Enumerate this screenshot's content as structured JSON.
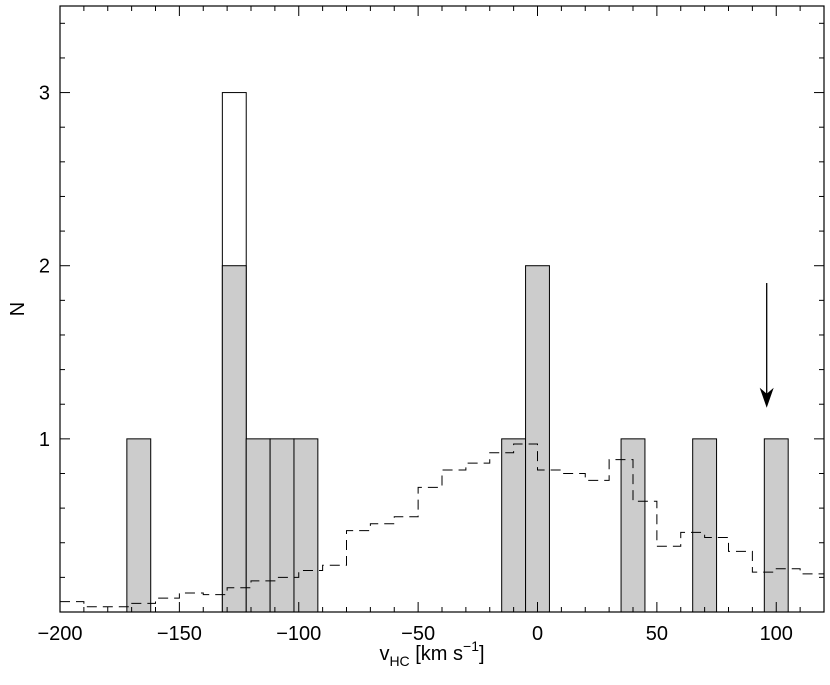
{
  "chart_data": {
    "type": "bar",
    "xlabel": "v",
    "xlabel_sub": "HC",
    "xlabel_units": " [km s",
    "xlabel_sup": "−1",
    "xlabel_close": "]",
    "ylabel": "N",
    "xlim": [
      -200,
      120
    ],
    "ylim": [
      0,
      3.5
    ],
    "x_major_ticks": [
      -200,
      -150,
      -100,
      -50,
      0,
      50,
      100
    ],
    "x_tick_labels": [
      "−200",
      "−150",
      "−100",
      "−50",
      "0",
      "50",
      "100"
    ],
    "x_minor_step": 10,
    "y_major_ticks": [
      1,
      2,
      3
    ],
    "y_tick_labels": [
      "1",
      "2",
      "3"
    ],
    "y_minor_step": 0.2,
    "bin_width": 10,
    "series": [
      {
        "style": "filled-gray",
        "bins": [
          {
            "x0": -172,
            "x1": -162,
            "count": 1
          },
          {
            "x0": -132,
            "x1": -122,
            "count": 2
          },
          {
            "x0": -122,
            "x1": -112,
            "count": 1
          },
          {
            "x0": -112,
            "x1": -102,
            "count": 1
          },
          {
            "x0": -102,
            "x1": -92,
            "count": 1
          },
          {
            "x0": -15,
            "x1": -5,
            "count": 1
          },
          {
            "x0": -5,
            "x1": 5,
            "count": 2
          },
          {
            "x0": 35,
            "x1": 45,
            "count": 1
          },
          {
            "x0": 65,
            "x1": 75,
            "count": 1
          },
          {
            "x0": 95,
            "x1": 105,
            "count": 1
          }
        ]
      },
      {
        "style": "open",
        "bins": [
          {
            "x0": -132,
            "x1": -122,
            "count": 3
          }
        ]
      },
      {
        "style": "dashed-step",
        "x": [
          -200,
          -190,
          -180,
          -170,
          -160,
          -150,
          -140,
          -130,
          -120,
          -110,
          -100,
          -90,
          -80,
          -70,
          -60,
          -50,
          -40,
          -30,
          -20,
          -10,
          0,
          10,
          20,
          30,
          40,
          50,
          60,
          70,
          80,
          90,
          100,
          110,
          120
        ],
        "y": [
          0.06,
          0.03,
          0.03,
          0.05,
          0.08,
          0.11,
          0.1,
          0.14,
          0.18,
          0.2,
          0.24,
          0.27,
          0.47,
          0.51,
          0.55,
          0.72,
          0.82,
          0.86,
          0.92,
          0.97,
          0.82,
          0.8,
          0.76,
          0.88,
          0.64,
          0.38,
          0.46,
          0.43,
          0.35,
          0.23,
          0.25,
          0.22,
          0.22
        ]
      }
    ],
    "arrow": {
      "x": 96,
      "y_from": 1.9,
      "y_to": 1.18
    },
    "grid": false
  }
}
